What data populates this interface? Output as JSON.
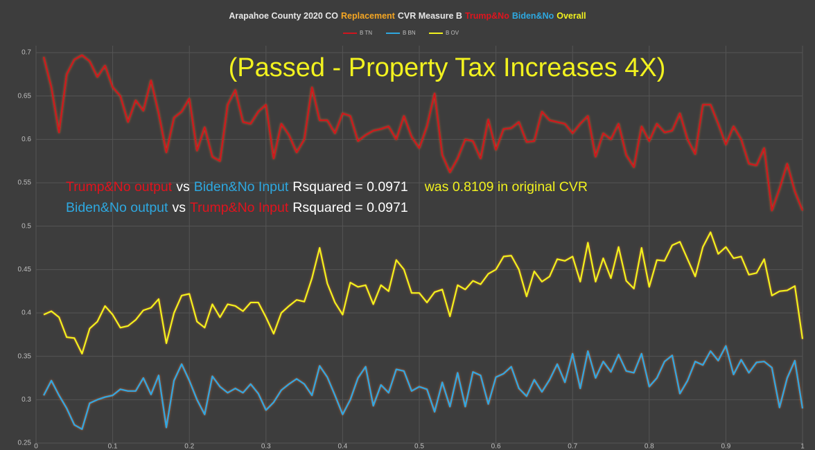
{
  "chart_data": {
    "type": "line",
    "title_parts": [
      {
        "text": "Arapahoe County 2020 CO",
        "color": "#e6e6e6"
      },
      {
        "text": "Replacement",
        "color": "#f5a623"
      },
      {
        "text": "CVR Measure B",
        "color": "#e6e6e6"
      },
      {
        "text": "Trump&No",
        "color": "#e0141e"
      },
      {
        "text": "Biden&No",
        "color": "#2ea8e0"
      },
      {
        "text": "Overall",
        "color": "#f2f21f"
      }
    ],
    "annotations": [
      {
        "parts": [
          {
            "text": "(Passed - Property Tax Increases 4X)",
            "color": "#f2f21f"
          }
        ]
      },
      {
        "parts": [
          {
            "text": "Trump&No output",
            "color": "#e0141e"
          },
          {
            "text": "vs",
            "color": "#ffffff"
          },
          {
            "text": "Biden&No Input",
            "color": "#2ea8e0"
          },
          {
            "text": "Rsquared = 0.0971",
            "color": "#ffffff"
          },
          {
            "text": "was 0.8109 in original CVR",
            "color": "#f2f21f"
          }
        ]
      },
      {
        "parts": [
          {
            "text": "Biden&No output",
            "color": "#2ea8e0"
          },
          {
            "text": "vs",
            "color": "#ffffff"
          },
          {
            "text": "Trump&No Input",
            "color": "#e0141e"
          },
          {
            "text": "Rsquared = 0.0971",
            "color": "#ffffff"
          }
        ]
      }
    ],
    "x": [
      0.01,
      0.02,
      0.03,
      0.04,
      0.05,
      0.06,
      0.07,
      0.08,
      0.09,
      0.1,
      0.11,
      0.12,
      0.13,
      0.14,
      0.15,
      0.16,
      0.17,
      0.18,
      0.19,
      0.2,
      0.21,
      0.22,
      0.23,
      0.24,
      0.25,
      0.26,
      0.27,
      0.28,
      0.29,
      0.3,
      0.31,
      0.32,
      0.33,
      0.34,
      0.35,
      0.36,
      0.37,
      0.38,
      0.39,
      0.4,
      0.41,
      0.42,
      0.43,
      0.44,
      0.45,
      0.46,
      0.47,
      0.48,
      0.49,
      0.5,
      0.51,
      0.52,
      0.53,
      0.54,
      0.55,
      0.56,
      0.57,
      0.58,
      0.59,
      0.6,
      0.61,
      0.62,
      0.63,
      0.64,
      0.65,
      0.66,
      0.67,
      0.68,
      0.69,
      0.7,
      0.71,
      0.72,
      0.73,
      0.74,
      0.75,
      0.76,
      0.77,
      0.78,
      0.79,
      0.8,
      0.81,
      0.82,
      0.83,
      0.84,
      0.85,
      0.86,
      0.87,
      0.88,
      0.89,
      0.9,
      0.91,
      0.92,
      0.93,
      0.94,
      0.95,
      0.96,
      0.97,
      0.98,
      0.99,
      1
    ],
    "series": [
      {
        "name": "B TN",
        "color": "#d0141e",
        "values": [
          0.695,
          0.66,
          0.608,
          0.675,
          0.692,
          0.697,
          0.69,
          0.672,
          0.685,
          0.66,
          0.65,
          0.62,
          0.645,
          0.633,
          0.668,
          0.63,
          0.585,
          0.625,
          0.632,
          0.647,
          0.587,
          0.614,
          0.58,
          0.575,
          0.64,
          0.657,
          0.62,
          0.618,
          0.632,
          0.64,
          0.578,
          0.618,
          0.605,
          0.585,
          0.6,
          0.66,
          0.622,
          0.622,
          0.607,
          0.63,
          0.627,
          0.598,
          0.605,
          0.61,
          0.612,
          0.615,
          0.6,
          0.627,
          0.603,
          0.59,
          0.615,
          0.653,
          0.582,
          0.562,
          0.578,
          0.6,
          0.598,
          0.578,
          0.623,
          0.588,
          0.612,
          0.613,
          0.62,
          0.597,
          0.598,
          0.632,
          0.622,
          0.62,
          0.618,
          0.607,
          0.618,
          0.627,
          0.58,
          0.607,
          0.6,
          0.618,
          0.582,
          0.568,
          0.615,
          0.598,
          0.618,
          0.608,
          0.61,
          0.63,
          0.6,
          0.583,
          0.64,
          0.64,
          0.618,
          0.594,
          0.615,
          0.6,
          0.572,
          0.57,
          0.59,
          0.518,
          0.543,
          0.572,
          0.54,
          0.518
        ]
      },
      {
        "name": "B BN",
        "color": "#2ea8e0",
        "values": [
          0.305,
          0.322,
          0.305,
          0.29,
          0.271,
          0.266,
          0.296,
          0.3,
          0.303,
          0.305,
          0.312,
          0.31,
          0.31,
          0.325,
          0.306,
          0.328,
          0.268,
          0.322,
          0.341,
          0.322,
          0.3,
          0.283,
          0.327,
          0.315,
          0.308,
          0.313,
          0.308,
          0.318,
          0.307,
          0.288,
          0.297,
          0.311,
          0.318,
          0.324,
          0.318,
          0.305,
          0.339,
          0.326,
          0.305,
          0.283,
          0.3,
          0.325,
          0.338,
          0.293,
          0.317,
          0.308,
          0.335,
          0.333,
          0.31,
          0.315,
          0.312,
          0.286,
          0.32,
          0.292,
          0.331,
          0.292,
          0.332,
          0.328,
          0.295,
          0.326,
          0.33,
          0.338,
          0.313,
          0.304,
          0.323,
          0.309,
          0.323,
          0.341,
          0.32,
          0.353,
          0.313,
          0.356,
          0.325,
          0.344,
          0.332,
          0.352,
          0.333,
          0.331,
          0.353,
          0.315,
          0.325,
          0.344,
          0.351,
          0.307,
          0.322,
          0.344,
          0.34,
          0.356,
          0.345,
          0.362,
          0.329,
          0.346,
          0.331,
          0.343,
          0.344,
          0.337,
          0.291,
          0.325,
          0.345,
          0.29
        ]
      },
      {
        "name": "B OV",
        "color": "#f2f21f",
        "values": [
          0.398,
          0.402,
          0.395,
          0.372,
          0.371,
          0.353,
          0.382,
          0.39,
          0.408,
          0.398,
          0.383,
          0.385,
          0.392,
          0.403,
          0.406,
          0.416,
          0.365,
          0.4,
          0.42,
          0.422,
          0.39,
          0.383,
          0.41,
          0.395,
          0.41,
          0.408,
          0.402,
          0.412,
          0.412,
          0.395,
          0.376,
          0.4,
          0.408,
          0.415,
          0.413,
          0.44,
          0.475,
          0.434,
          0.412,
          0.398,
          0.435,
          0.43,
          0.432,
          0.41,
          0.432,
          0.425,
          0.461,
          0.45,
          0.423,
          0.423,
          0.412,
          0.424,
          0.427,
          0.396,
          0.432,
          0.427,
          0.437,
          0.433,
          0.445,
          0.45,
          0.465,
          0.466,
          0.45,
          0.419,
          0.448,
          0.436,
          0.442,
          0.462,
          0.46,
          0.465,
          0.436,
          0.481,
          0.436,
          0.463,
          0.44,
          0.476,
          0.437,
          0.428,
          0.475,
          0.43,
          0.461,
          0.46,
          0.478,
          0.482,
          0.462,
          0.442,
          0.476,
          0.493,
          0.468,
          0.476,
          0.463,
          0.465,
          0.444,
          0.446,
          0.462,
          0.42,
          0.425,
          0.426,
          0.431,
          0.37
        ]
      }
    ],
    "xlim": [
      0,
      1
    ],
    "xticks": [
      0,
      0.1,
      0.2,
      0.3,
      0.4,
      0.5,
      0.6,
      0.7,
      0.8,
      0.9,
      1
    ],
    "ylim": [
      0.25,
      0.7
    ],
    "yticks": [
      0.25,
      0.3,
      0.35,
      0.4,
      0.45,
      0.5,
      0.55,
      0.6,
      0.65,
      0.7
    ],
    "grid": true,
    "legend": "top"
  }
}
